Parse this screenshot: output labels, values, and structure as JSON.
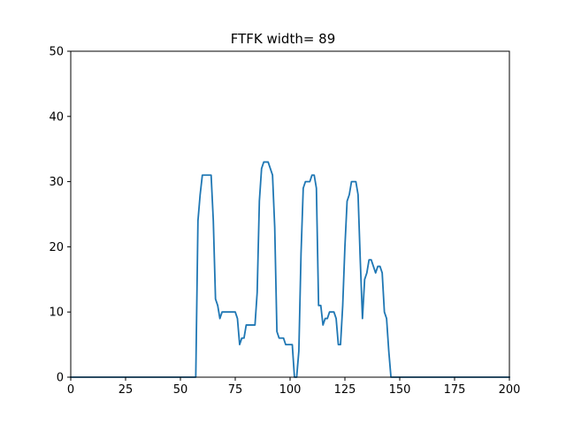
{
  "chart_data": {
    "type": "line",
    "title": "FTFK width= 89",
    "xlabel": "",
    "ylabel": "",
    "xlim": [
      0,
      200
    ],
    "ylim": [
      0,
      50
    ],
    "xticks": [
      0,
      25,
      50,
      75,
      100,
      125,
      150,
      175,
      200
    ],
    "yticks": [
      0,
      10,
      20,
      30,
      40,
      50
    ],
    "xtick_labels": [
      "0",
      "25",
      "50",
      "75",
      "100",
      "125",
      "150",
      "175",
      "200"
    ],
    "ytick_labels": [
      "0",
      "10",
      "20",
      "30",
      "40",
      "50"
    ],
    "grid": false,
    "line_color": "#1f77b4",
    "series": [
      {
        "x": [
          0,
          57,
          58,
          59,
          60,
          61,
          62,
          63,
          64,
          65,
          66,
          67,
          68,
          69,
          70,
          71,
          72,
          73,
          74,
          75,
          76,
          77,
          78,
          79,
          80,
          81,
          82,
          83,
          84,
          85,
          86,
          87,
          88,
          89,
          90,
          91,
          92,
          93,
          94,
          95,
          96,
          97,
          98,
          99,
          100,
          101,
          102,
          103,
          104,
          105,
          106,
          107,
          108,
          109,
          110,
          111,
          112,
          113,
          114,
          115,
          116,
          117,
          118,
          119,
          120,
          121,
          122,
          123,
          124,
          125,
          126,
          127,
          128,
          129,
          130,
          131,
          132,
          133,
          134,
          135,
          136,
          137,
          138,
          139,
          140,
          141,
          142,
          143,
          144,
          145,
          146,
          147,
          200
        ],
        "y": [
          0,
          0,
          24,
          28,
          31,
          31,
          31,
          31,
          31,
          24,
          12,
          11,
          9,
          10,
          10,
          10,
          10,
          10,
          10,
          10,
          9,
          5,
          6,
          6,
          8,
          8,
          8,
          8,
          8,
          13,
          27,
          32,
          33,
          33,
          33,
          32,
          31,
          23,
          7,
          6,
          6,
          6,
          5,
          5,
          5,
          5,
          0,
          0,
          4,
          19,
          29,
          30,
          30,
          30,
          31,
          31,
          29,
          11,
          11,
          8,
          9,
          9,
          10,
          10,
          10,
          9,
          5,
          5,
          11,
          20,
          27,
          28,
          30,
          30,
          30,
          28,
          18,
          9,
          15,
          16,
          18,
          18,
          17,
          16,
          17,
          17,
          16,
          10,
          9,
          4,
          0,
          0,
          0
        ]
      }
    ]
  }
}
